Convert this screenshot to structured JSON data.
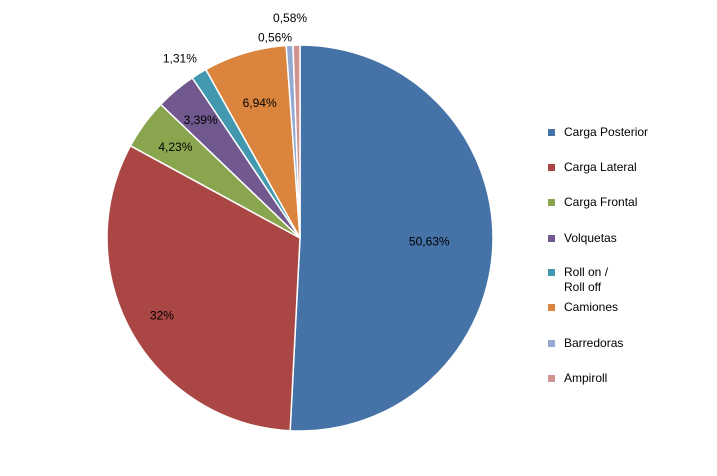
{
  "chart_data": {
    "type": "pie",
    "series": [
      {
        "label": "Carga Posterior",
        "value": 50.63,
        "display": "50,63%",
        "color": "#4572A7"
      },
      {
        "label": "Carga Lateral",
        "value": 32,
        "display": "32%",
        "color": "#AA4643"
      },
      {
        "label": "Carga Frontal",
        "value": 4.23,
        "display": "4,23%",
        "color": "#89A54E"
      },
      {
        "label": "Volquetas",
        "value": 3.39,
        "display": "3,39%",
        "color": "#71588F"
      },
      {
        "label": "Roll on / Roll off",
        "value": 1.31,
        "display": "1,31%",
        "color": "#4198AF"
      },
      {
        "label": "Camiones",
        "value": 6.94,
        "display": "6,94%",
        "color": "#DB843D"
      },
      {
        "label": "Barredoras",
        "value": 0.56,
        "display": "0,56%",
        "color": "#93A9CF"
      },
      {
        "label": "Ampiroll",
        "value": 0.58,
        "display": "0,58%",
        "color": "#D19392"
      }
    ],
    "legend_position": "right",
    "start_angle": "12 o'clock, clockwise"
  },
  "legend": {
    "items": [
      {
        "text": "Carga Posterior",
        "color": "#4572A7"
      },
      {
        "text": "Carga Lateral",
        "color": "#AA4643"
      },
      {
        "text": "Carga Frontal",
        "color": "#89A54E"
      },
      {
        "text": "Volquetas",
        "color": "#71588F"
      },
      {
        "text": "Roll on /",
        "text2": "Roll off",
        "color": "#4198AF"
      },
      {
        "text": "Camiones",
        "color": "#DB843D"
      },
      {
        "text": "Barredoras",
        "color": "#93A9CF"
      },
      {
        "text": "Ampiroll",
        "color": "#D19392"
      }
    ]
  }
}
